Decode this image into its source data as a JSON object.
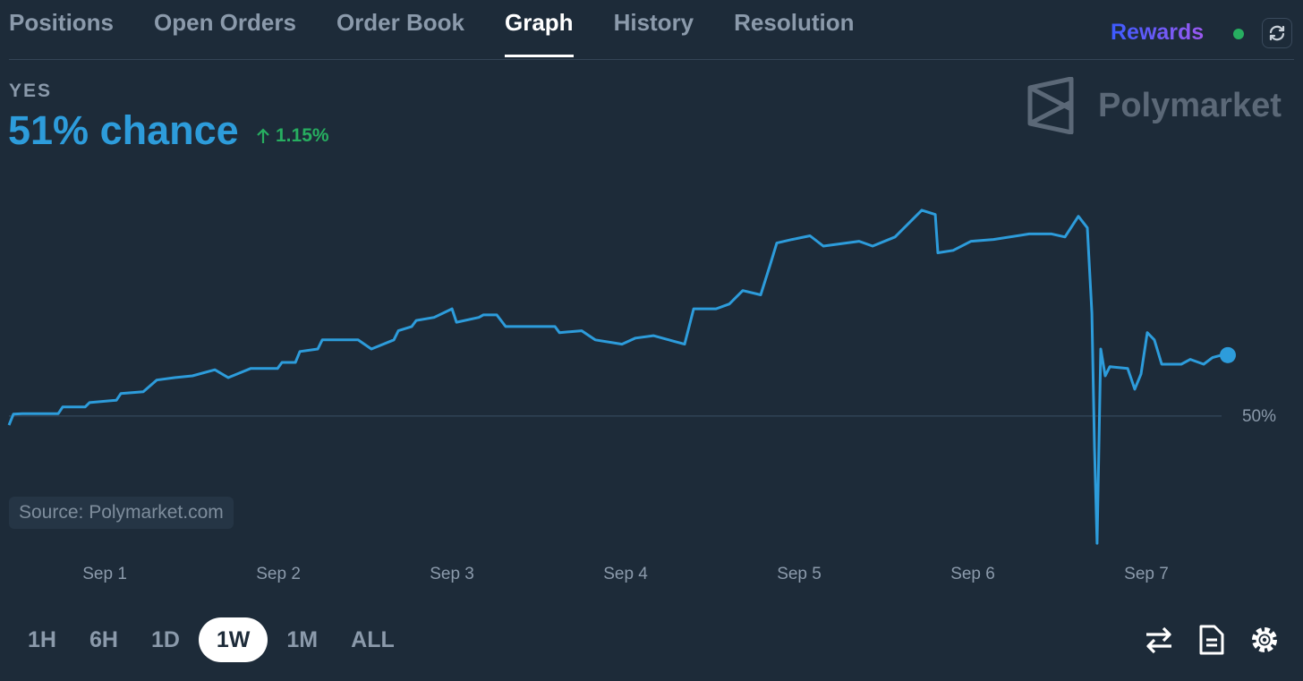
{
  "tabs": [
    "Positions",
    "Open Orders",
    "Order Book",
    "Graph",
    "History",
    "Resolution"
  ],
  "active_tab": "Graph",
  "rewards": "Rewards",
  "outcome": "YES",
  "chance": "51% chance",
  "change": "1.15%",
  "brand": "Polymarket",
  "source": "Source: Polymarket.com",
  "ranges": [
    "1H",
    "6H",
    "1D",
    "1W",
    "1M",
    "ALL"
  ],
  "active_range": "1W",
  "chart_data": {
    "type": "line",
    "x": [
      0.448,
      0.474,
      0.526,
      0.732,
      0.758,
      0.887,
      0.912,
      1.067,
      1.093,
      1.222,
      1.299,
      1.402,
      1.505,
      1.634,
      1.711,
      1.763,
      1.84,
      1.995,
      2.021,
      2.098,
      2.124,
      2.227,
      2.253,
      2.459,
      2.536,
      2.665,
      2.691,
      2.768,
      2.794,
      2.897,
      3.0,
      3.026,
      3.155,
      3.18,
      3.258,
      3.309,
      3.593,
      3.619,
      3.747,
      3.825,
      3.979,
      4.057,
      4.16,
      4.289,
      4.34,
      4.392,
      4.521,
      4.598,
      4.675,
      4.778,
      4.83,
      4.871,
      4.959,
      5.062,
      5.139,
      5.345,
      5.423,
      5.552,
      5.629,
      5.706,
      5.784,
      5.799,
      5.887,
      5.99,
      6.119,
      6.325,
      6.454,
      6.531,
      6.608,
      6.66,
      6.686,
      6.701,
      6.716,
      6.737,
      6.763,
      6.789,
      6.892,
      6.933,
      6.969,
      7.005,
      7.046,
      7.088,
      7.201,
      7.253,
      7.33,
      7.381,
      7.433,
      7.469
    ],
    "series": [
      {
        "color": "#2d9cdb",
        "values": [
          49.85,
          50.03,
          50.04,
          50.04,
          50.15,
          50.15,
          50.22,
          50.26,
          50.37,
          50.4,
          50.59,
          50.63,
          50.66,
          50.76,
          50.63,
          50.69,
          50.78,
          50.78,
          50.88,
          50.88,
          51.06,
          51.1,
          51.25,
          51.25,
          51.1,
          51.25,
          51.4,
          51.47,
          51.57,
          51.62,
          51.76,
          51.54,
          51.62,
          51.66,
          51.66,
          51.47,
          51.47,
          51.37,
          51.4,
          51.25,
          51.18,
          51.28,
          51.32,
          51.22,
          51.18,
          51.76,
          51.76,
          51.84,
          52.06,
          51.99,
          52.46,
          52.84,
          52.9,
          52.96,
          52.79,
          52.87,
          52.79,
          52.94,
          53.16,
          53.38,
          53.31,
          52.68,
          52.72,
          52.87,
          52.9,
          52.99,
          52.99,
          52.94,
          53.28,
          53.09,
          51.69,
          49.49,
          47.91,
          51.1,
          50.66,
          50.81,
          50.78,
          50.44,
          50.69,
          51.37,
          51.25,
          50.85,
          50.85,
          50.93,
          50.85,
          50.96,
          51.0,
          51.0
        ]
      }
    ],
    "xlim": [
      0.448,
      7.433
    ],
    "ylim": [
      47.72,
      54.04
    ],
    "xticks": [
      {
        "value": 1,
        "label": "Sep 1"
      },
      {
        "value": 2,
        "label": "Sep 2"
      },
      {
        "value": 3,
        "label": "Sep 3"
      },
      {
        "value": 4,
        "label": "Sep 4"
      },
      {
        "value": 5,
        "label": "Sep 5"
      },
      {
        "value": 6,
        "label": "Sep 6"
      },
      {
        "value": 7,
        "label": "Sep 7"
      }
    ],
    "yticks": [
      {
        "value": 50,
        "label": "50%"
      }
    ],
    "grid": true
  }
}
